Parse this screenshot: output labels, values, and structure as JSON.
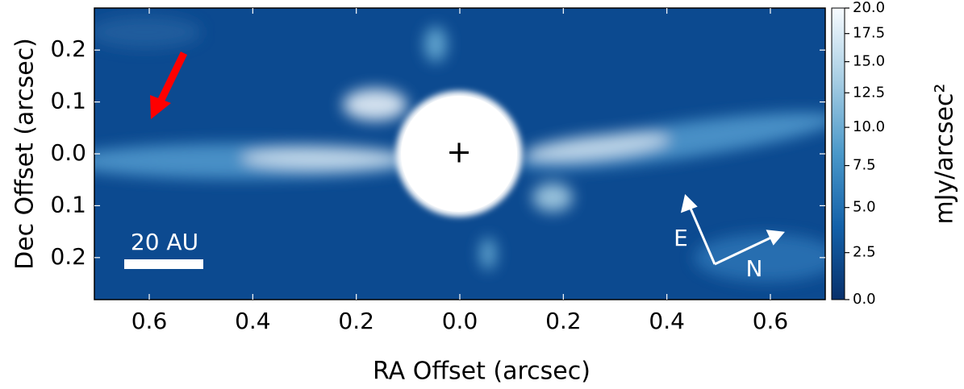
{
  "chart_data": {
    "type": "image",
    "x_label": "RA Offset (arcsec)",
    "y_label": "Dec Offset (arcsec)",
    "xlim": [
      -0.706,
      0.706
    ],
    "xticks": [
      {
        "value": -0.6,
        "label": "0.6"
      },
      {
        "value": -0.4,
        "label": "0.4"
      },
      {
        "value": -0.2,
        "label": "0.2"
      },
      {
        "value": 0,
        "label": "0.0"
      },
      0.2,
      0.4,
      0.6
    ],
    "ylim": [
      -0.281,
      0.281
    ],
    "yticks": [
      0.2,
      0.1,
      {
        "value": 0,
        "label": "0.0"
      },
      {
        "value": -0.1,
        "label": "0.1"
      },
      {
        "value": -0.2,
        "label": "0.2"
      }
    ],
    "colorbar_label": "mJy/arcsec²",
    "colorbar_lim": [
      0,
      20
    ],
    "colorbar_ticks": [
      {
        "value": 0,
        "label": "0.0"
      },
      2.5,
      {
        "value": 5,
        "label": "5.0"
      },
      7.5,
      {
        "value": 10,
        "label": "10.0"
      },
      12.5,
      {
        "value": 15,
        "label": "15.0"
      },
      17.5,
      {
        "value": 20,
        "label": "20.0"
      }
    ],
    "annotations": {
      "scale_bar": "20 AU",
      "east": "E",
      "north": "N",
      "star": "+"
    }
  }
}
